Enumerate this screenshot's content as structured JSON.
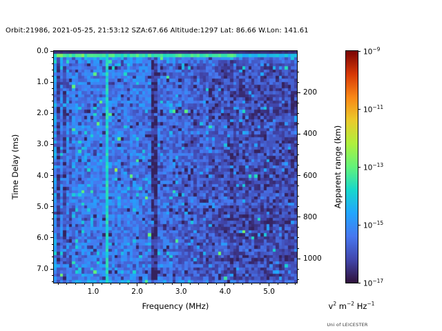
{
  "title": "Orbit:21986, 2021-05-25, 21:53:12 SZA:67.66 Altitude:1297 Lat: 86.66 W.Lon: 141.61",
  "credit": "Uni of LEICESTER",
  "chart_data": {
    "type": "heatmap",
    "title": "Orbit:21986, 2021-05-25, 21:53:12 SZA:67.66 Altitude:1297 Lat: 86.66 W.Lon: 141.61",
    "xlabel": "Frequency (MHz)",
    "ylabel": "Time Delay (ms)",
    "ylabel_right": "Apparent range (km)",
    "grid": false,
    "x_axis": {
      "range": [
        0.105,
        5.635
      ],
      "major_ticks": [
        {
          "value": 1.0,
          "label": "1.0"
        },
        {
          "value": 2.0,
          "label": "2.0"
        },
        {
          "value": 3.0,
          "label": "3.0"
        },
        {
          "value": 4.0,
          "label": "4.0"
        },
        {
          "value": 5.0,
          "label": "5.0"
        }
      ],
      "minor_step": 0.2
    },
    "y_axis": {
      "range": [
        0,
        7.44
      ],
      "major_ticks": [
        {
          "value": 0.0,
          "label": "0.0"
        },
        {
          "value": 1.0,
          "label": "1.0"
        },
        {
          "value": 2.0,
          "label": "2.0"
        },
        {
          "value": 3.0,
          "label": "3.0"
        },
        {
          "value": 4.0,
          "label": "4.0"
        },
        {
          "value": 5.0,
          "label": "5.0"
        },
        {
          "value": 6.0,
          "label": "6.0"
        },
        {
          "value": 7.0,
          "label": "7.0"
        }
      ],
      "minor_step": 0.2
    },
    "right_axis": {
      "range": [
        0,
        1116
      ],
      "km_per_ms": 150,
      "major_ticks": [
        {
          "value": 200,
          "label": "200"
        },
        {
          "value": 400,
          "label": "400"
        },
        {
          "value": 600,
          "label": "600"
        },
        {
          "value": 800,
          "label": "800"
        },
        {
          "value": 1000,
          "label": "1000"
        }
      ],
      "minor_step": 50
    },
    "colorbar": {
      "scale": "log",
      "value_top": "1e-9",
      "value_bottom": "1e-17",
      "tick_exponents": [
        "−9",
        "−11",
        "−13",
        "−15",
        "−17"
      ],
      "unit_parts": [
        [
          "v",
          "2"
        ],
        [
          "m",
          "−2"
        ],
        [
          "Hz",
          "−1"
        ]
      ],
      "colormap": "turbo",
      "turbo_stops": [
        [
          0.0,
          "#30123b"
        ],
        [
          0.1,
          "#4146ac"
        ],
        [
          0.2,
          "#4777ef"
        ],
        [
          0.3,
          "#21a5fe"
        ],
        [
          0.4,
          "#18d7cc"
        ],
        [
          0.5,
          "#62f37a"
        ],
        [
          0.6,
          "#aff03d"
        ],
        [
          0.7,
          "#eaca2c"
        ],
        [
          0.8,
          "#f98816"
        ],
        [
          0.9,
          "#d73806"
        ],
        [
          1.0,
          "#7a0403"
        ]
      ]
    },
    "heatmap": {
      "description": "Radar sounder ionogram: blue background noise over 0.1-5.6 MHz, power mostly 1e-16 to 1e-14; dark first delay row; bright cyan surface-echo row near 0.2 ms with green cells at 0.2 and 0.75 MHz; cyan vertical interference line at 1.35 MHz; dark attenuation bands near 0.23, 0.35, 0.47 and 2.4 MHz; noise fades darker above ~3.8 MHz.",
      "seed": 1337,
      "freq_bins": 80,
      "delay_bins": 75,
      "base_level": 0.215,
      "noise_sigma": 0.15,
      "fade_start_mhz": 1.9,
      "fade_span_mhz": 2.4,
      "fade_drop": 0.095,
      "rows": {
        "first_row_value": 0.045,
        "surface_value": 0.45,
        "surface_value_faded": 0.33,
        "surface_fade_mhz": 4.25,
        "surface_green_bins": [
          1,
          2,
          9
        ],
        "surface_green_value": 0.54
      },
      "dark_bands": [
        {
          "f": 0.225,
          "w": 0.1,
          "drop": 0.11
        },
        {
          "f": 0.345,
          "w": 0.08,
          "drop": 0.1
        },
        {
          "f": 0.47,
          "w": 0.07,
          "drop": 0.05
        },
        {
          "f": 2.39,
          "w": 0.13,
          "drop": 0.13
        }
      ],
      "bright_line": {
        "f": 1.345,
        "value": 0.4
      },
      "left_edge_boost": {
        "below_mhz": 0.16,
        "boost": 0.05
      }
    }
  }
}
